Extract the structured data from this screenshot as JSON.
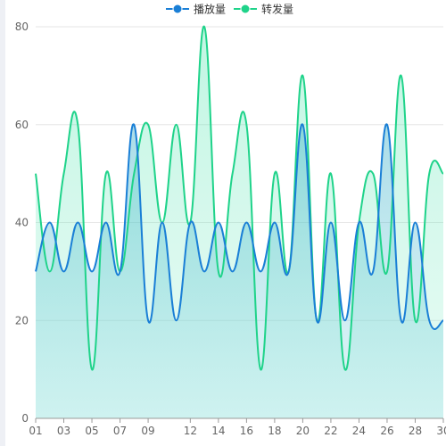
{
  "chart_data": {
    "type": "area",
    "title": "",
    "xlabel": "",
    "ylabel": "",
    "ylim": [
      0,
      80
    ],
    "yticks": [
      0,
      20,
      40,
      60,
      80
    ],
    "categories": [
      "01",
      "02",
      "03",
      "04",
      "05",
      "06",
      "07",
      "08",
      "09",
      "10",
      "11",
      "12",
      "13",
      "14",
      "15",
      "16",
      "17",
      "18",
      "19",
      "20",
      "21",
      "22",
      "23",
      "24",
      "25",
      "26",
      "27",
      "28",
      "29",
      "30"
    ],
    "xtick_labels": [
      "01",
      "03",
      "05",
      "07",
      "09",
      "12",
      "14",
      "16",
      "18",
      "20",
      "22",
      "24",
      "26",
      "28",
      "30"
    ],
    "legend_position": "top-center",
    "grid": true,
    "series": [
      {
        "name": "播放量",
        "color": "#1a7fd6",
        "values": [
          30,
          40,
          30,
          40,
          30,
          40,
          30,
          60,
          20,
          40,
          20,
          40,
          30,
          40,
          30,
          40,
          30,
          40,
          30,
          60,
          20,
          40,
          20,
          40,
          30,
          60,
          20,
          40,
          20,
          20
        ]
      },
      {
        "name": "转发量",
        "color": "#1fd38a",
        "values": [
          50,
          30,
          50,
          60,
          10,
          50,
          30,
          50,
          60,
          40,
          60,
          40,
          80,
          30,
          50,
          60,
          10,
          50,
          30,
          70,
          20,
          50,
          10,
          40,
          50,
          30,
          70,
          20,
          50,
          50
        ]
      }
    ]
  }
}
